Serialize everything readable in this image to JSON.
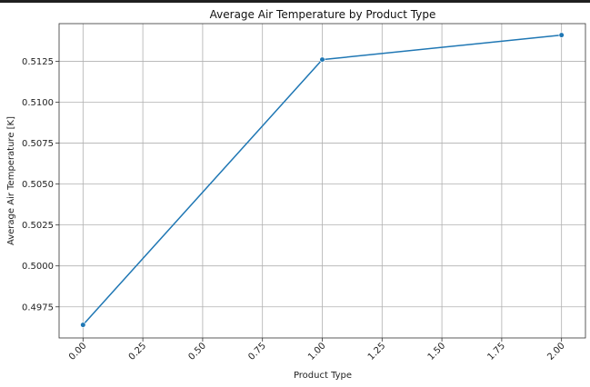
{
  "chart_data": {
    "type": "line",
    "title": "Average Air Temperature by Product Type",
    "xlabel": "Product Type",
    "ylabel": "Average Air Temperature [K]",
    "xlim": [
      -0.1,
      2.1
    ],
    "ylim": [
      0.4956,
      0.5148
    ],
    "xticks": [
      "0.00",
      "0.25",
      "0.50",
      "0.75",
      "1.00",
      "1.25",
      "1.50",
      "1.75",
      "2.00"
    ],
    "yticks": [
      "0.4975",
      "0.5000",
      "0.5025",
      "0.5050",
      "0.5075",
      "0.5100",
      "0.5125"
    ],
    "grid": true,
    "series": [
      {
        "x": [
          0,
          1,
          2
        ],
        "y": [
          0.4964,
          0.5126,
          0.5141
        ],
        "color": "#1f77b4",
        "marker": "circle"
      }
    ]
  }
}
